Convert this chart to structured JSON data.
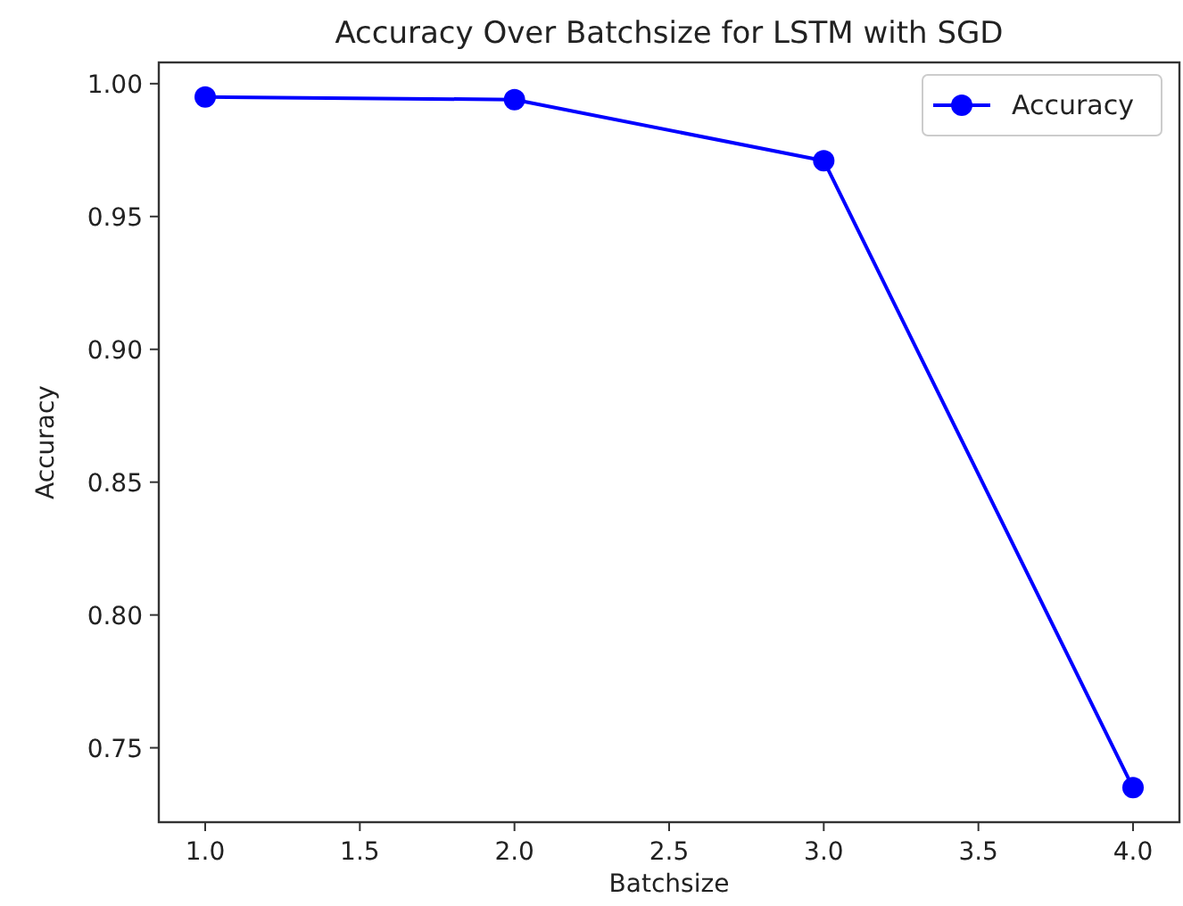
{
  "chart_data": {
    "type": "line",
    "title": "Accuracy Over Batchsize for LSTM with SGD",
    "xlabel": "Batchsize",
    "ylabel": "Accuracy",
    "x": [
      1,
      2,
      3,
      4
    ],
    "series": [
      {
        "name": "Accuracy",
        "color": "#0000ff",
        "values": [
          0.995,
          0.994,
          0.971,
          0.735
        ]
      }
    ],
    "xlim": [
      0.85,
      4.15
    ],
    "xticks": [
      {
        "value": 1,
        "label": "1.0"
      },
      {
        "value": 1.5,
        "label": "1.5"
      },
      {
        "value": 2,
        "label": "2.0"
      },
      {
        "value": 2.5,
        "label": "2.5"
      },
      {
        "value": 3,
        "label": "3.0"
      },
      {
        "value": 3.5,
        "label": "3.5"
      },
      {
        "value": 4,
        "label": "4.0"
      }
    ],
    "ylim": [
      0.722,
      1.008
    ],
    "yticks": [
      {
        "value": 0.75,
        "label": "0.75"
      },
      {
        "value": 0.8,
        "label": "0.80"
      },
      {
        "value": 0.85,
        "label": "0.85"
      },
      {
        "value": 0.9,
        "label": "0.90"
      },
      {
        "value": 0.95,
        "label": "0.95"
      },
      {
        "value": 1,
        "label": "1.00"
      }
    ],
    "grid": false,
    "legend": "top right",
    "marker": "circle",
    "line_style": "solid"
  }
}
